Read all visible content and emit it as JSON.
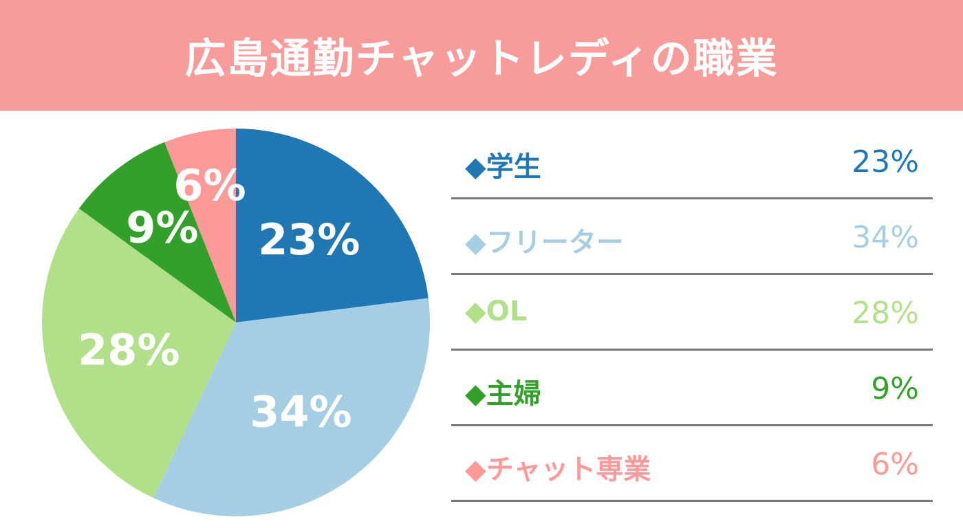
{
  "title": "広島通勤チャットレディの職業",
  "header_color": "#f79c9b",
  "chart_data": {
    "type": "pie",
    "unit": "%",
    "start_angle_deg": 0,
    "direction": "clockwise",
    "categories": [
      "学生",
      "フリーター",
      "OL",
      "主婦",
      "チャット専業"
    ],
    "values": [
      23,
      34,
      28,
      9,
      6
    ],
    "colors": [
      "#1f77b4",
      "#a6cee3",
      "#b2df8a",
      "#33a02c",
      "#fb9a99"
    ],
    "slice_labels": [
      "23%",
      "34%",
      "28%",
      "9%",
      "6%"
    ],
    "legend": [
      {
        "marker": "◆",
        "name": "学生",
        "value": "23%",
        "color": "#1f77b4"
      },
      {
        "marker": "◆",
        "name": "フリーター",
        "value": "34%",
        "color": "#a6cee3"
      },
      {
        "marker": "◆",
        "name": "OL",
        "value": "28%",
        "color": "#b2df8a"
      },
      {
        "marker": "◆",
        "name": "主婦",
        "value": "9%",
        "color": "#33a02c"
      },
      {
        "marker": "◆",
        "name": "チャット専業",
        "value": "6%",
        "color": "#fb9a99"
      }
    ]
  }
}
